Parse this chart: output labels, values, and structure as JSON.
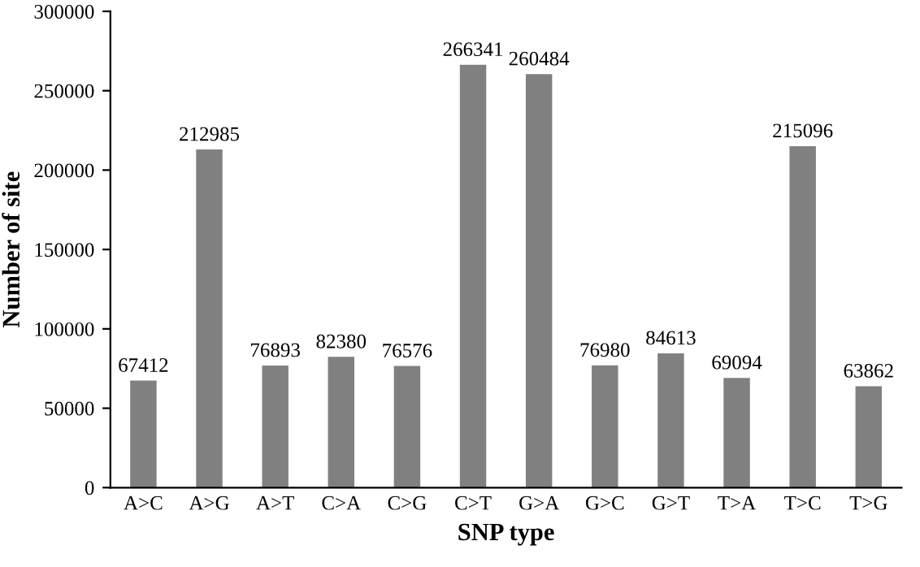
{
  "chart_data": {
    "type": "bar",
    "categories": [
      "A>C",
      "A>G",
      "A>T",
      "C>A",
      "C>G",
      "C>T",
      "G>A",
      "G>C",
      "G>T",
      "T>A",
      "T>C",
      "T>G"
    ],
    "values": [
      67412,
      212985,
      76893,
      82380,
      76576,
      266341,
      260484,
      76980,
      84613,
      69094,
      215096,
      63862
    ],
    "color": "#808080",
    "xlabel": "SNP type",
    "ylabel": "Number of site",
    "ylim": [
      0,
      300000
    ],
    "yticks": [
      0,
      50000,
      100000,
      150000,
      200000,
      250000,
      300000
    ],
    "data_labels": true,
    "grid": false,
    "legend": false
  }
}
